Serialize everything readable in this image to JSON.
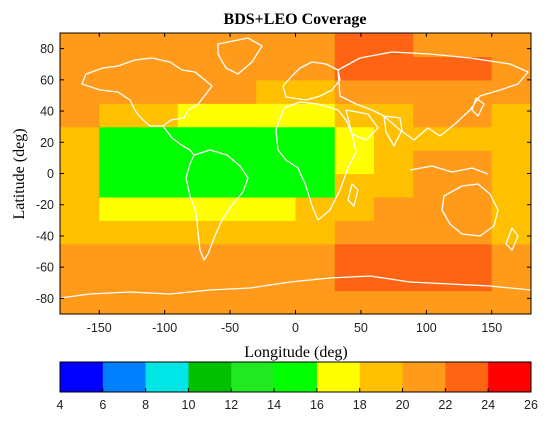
{
  "chart_data": {
    "type": "heatmap",
    "title": "BDS+LEO Coverage",
    "xlabel": "Longitude (deg)",
    "ylabel": "Latitude (deg)",
    "xlim": [
      -180,
      180
    ],
    "ylim": [
      -90,
      90
    ],
    "xticks": [
      -150,
      -100,
      -50,
      0,
      50,
      100,
      150
    ],
    "yticks": [
      80,
      60,
      40,
      20,
      0,
      -20,
      -40,
      -60,
      -80
    ],
    "grid": false,
    "overlay": "world coastlines",
    "colorbar": {
      "orientation": "horizontal",
      "ticks": [
        4,
        6,
        8,
        10,
        12,
        14,
        16,
        18,
        20,
        22,
        24,
        26
      ],
      "bins": [
        {
          "from": 4,
          "to": 6,
          "color": "#0000ff"
        },
        {
          "from": 6,
          "to": 8,
          "color": "#0080ff"
        },
        {
          "from": 8,
          "to": 10,
          "color": "#00e5e5"
        },
        {
          "from": 10,
          "to": 12,
          "color": "#00c000"
        },
        {
          "from": 12,
          "to": 14,
          "color": "#22e822"
        },
        {
          "from": 14,
          "to": 16,
          "color": "#00ff00"
        },
        {
          "from": 16,
          "to": 18,
          "color": "#ffff00"
        },
        {
          "from": 18,
          "to": 20,
          "color": "#ffc000"
        },
        {
          "from": 20,
          "to": 22,
          "color": "#ff9a1a"
        },
        {
          "from": 22,
          "to": 24,
          "color": "#ff6414"
        },
        {
          "from": 24,
          "to": 26,
          "color": "#ff0000"
        }
      ]
    },
    "field": {
      "lon_step": 30,
      "lat_step": 15,
      "lon_start": -180,
      "lat_start": -90,
      "rows": [
        [
          21,
          21,
          21,
          21,
          21,
          21,
          21,
          21,
          21,
          21,
          21,
          21
        ],
        [
          21,
          21,
          21,
          21,
          21,
          21,
          21,
          23,
          23,
          23,
          22,
          21
        ],
        [
          21,
          21,
          21,
          21,
          21,
          21,
          21,
          22,
          23,
          22,
          22,
          21
        ],
        [
          19,
          19,
          19,
          19,
          19,
          19,
          19,
          21,
          21,
          21,
          21,
          19
        ],
        [
          19,
          17,
          17,
          17,
          17,
          17,
          19,
          19,
          21,
          21,
          21,
          19
        ],
        [
          19,
          15,
          15,
          15,
          15,
          15,
          15,
          19,
          19,
          21,
          21,
          19
        ],
        [
          19,
          15,
          15,
          15,
          15,
          15,
          15,
          17,
          19,
          21,
          21,
          19
        ],
        [
          19,
          15,
          15,
          15,
          15,
          15,
          15,
          17,
          19,
          19,
          19,
          19
        ],
        [
          21,
          19,
          19,
          17,
          17,
          17,
          17,
          19,
          19,
          21,
          21,
          19
        ],
        [
          21,
          21,
          21,
          21,
          21,
          19,
          19,
          21,
          21,
          21,
          21,
          21
        ],
        [
          21,
          21,
          21,
          21,
          21,
          21,
          21,
          23,
          23,
          23,
          22,
          21
        ],
        [
          21,
          21,
          21,
          21,
          21,
          21,
          21,
          23,
          23,
          21,
          21,
          21
        ]
      ]
    }
  }
}
